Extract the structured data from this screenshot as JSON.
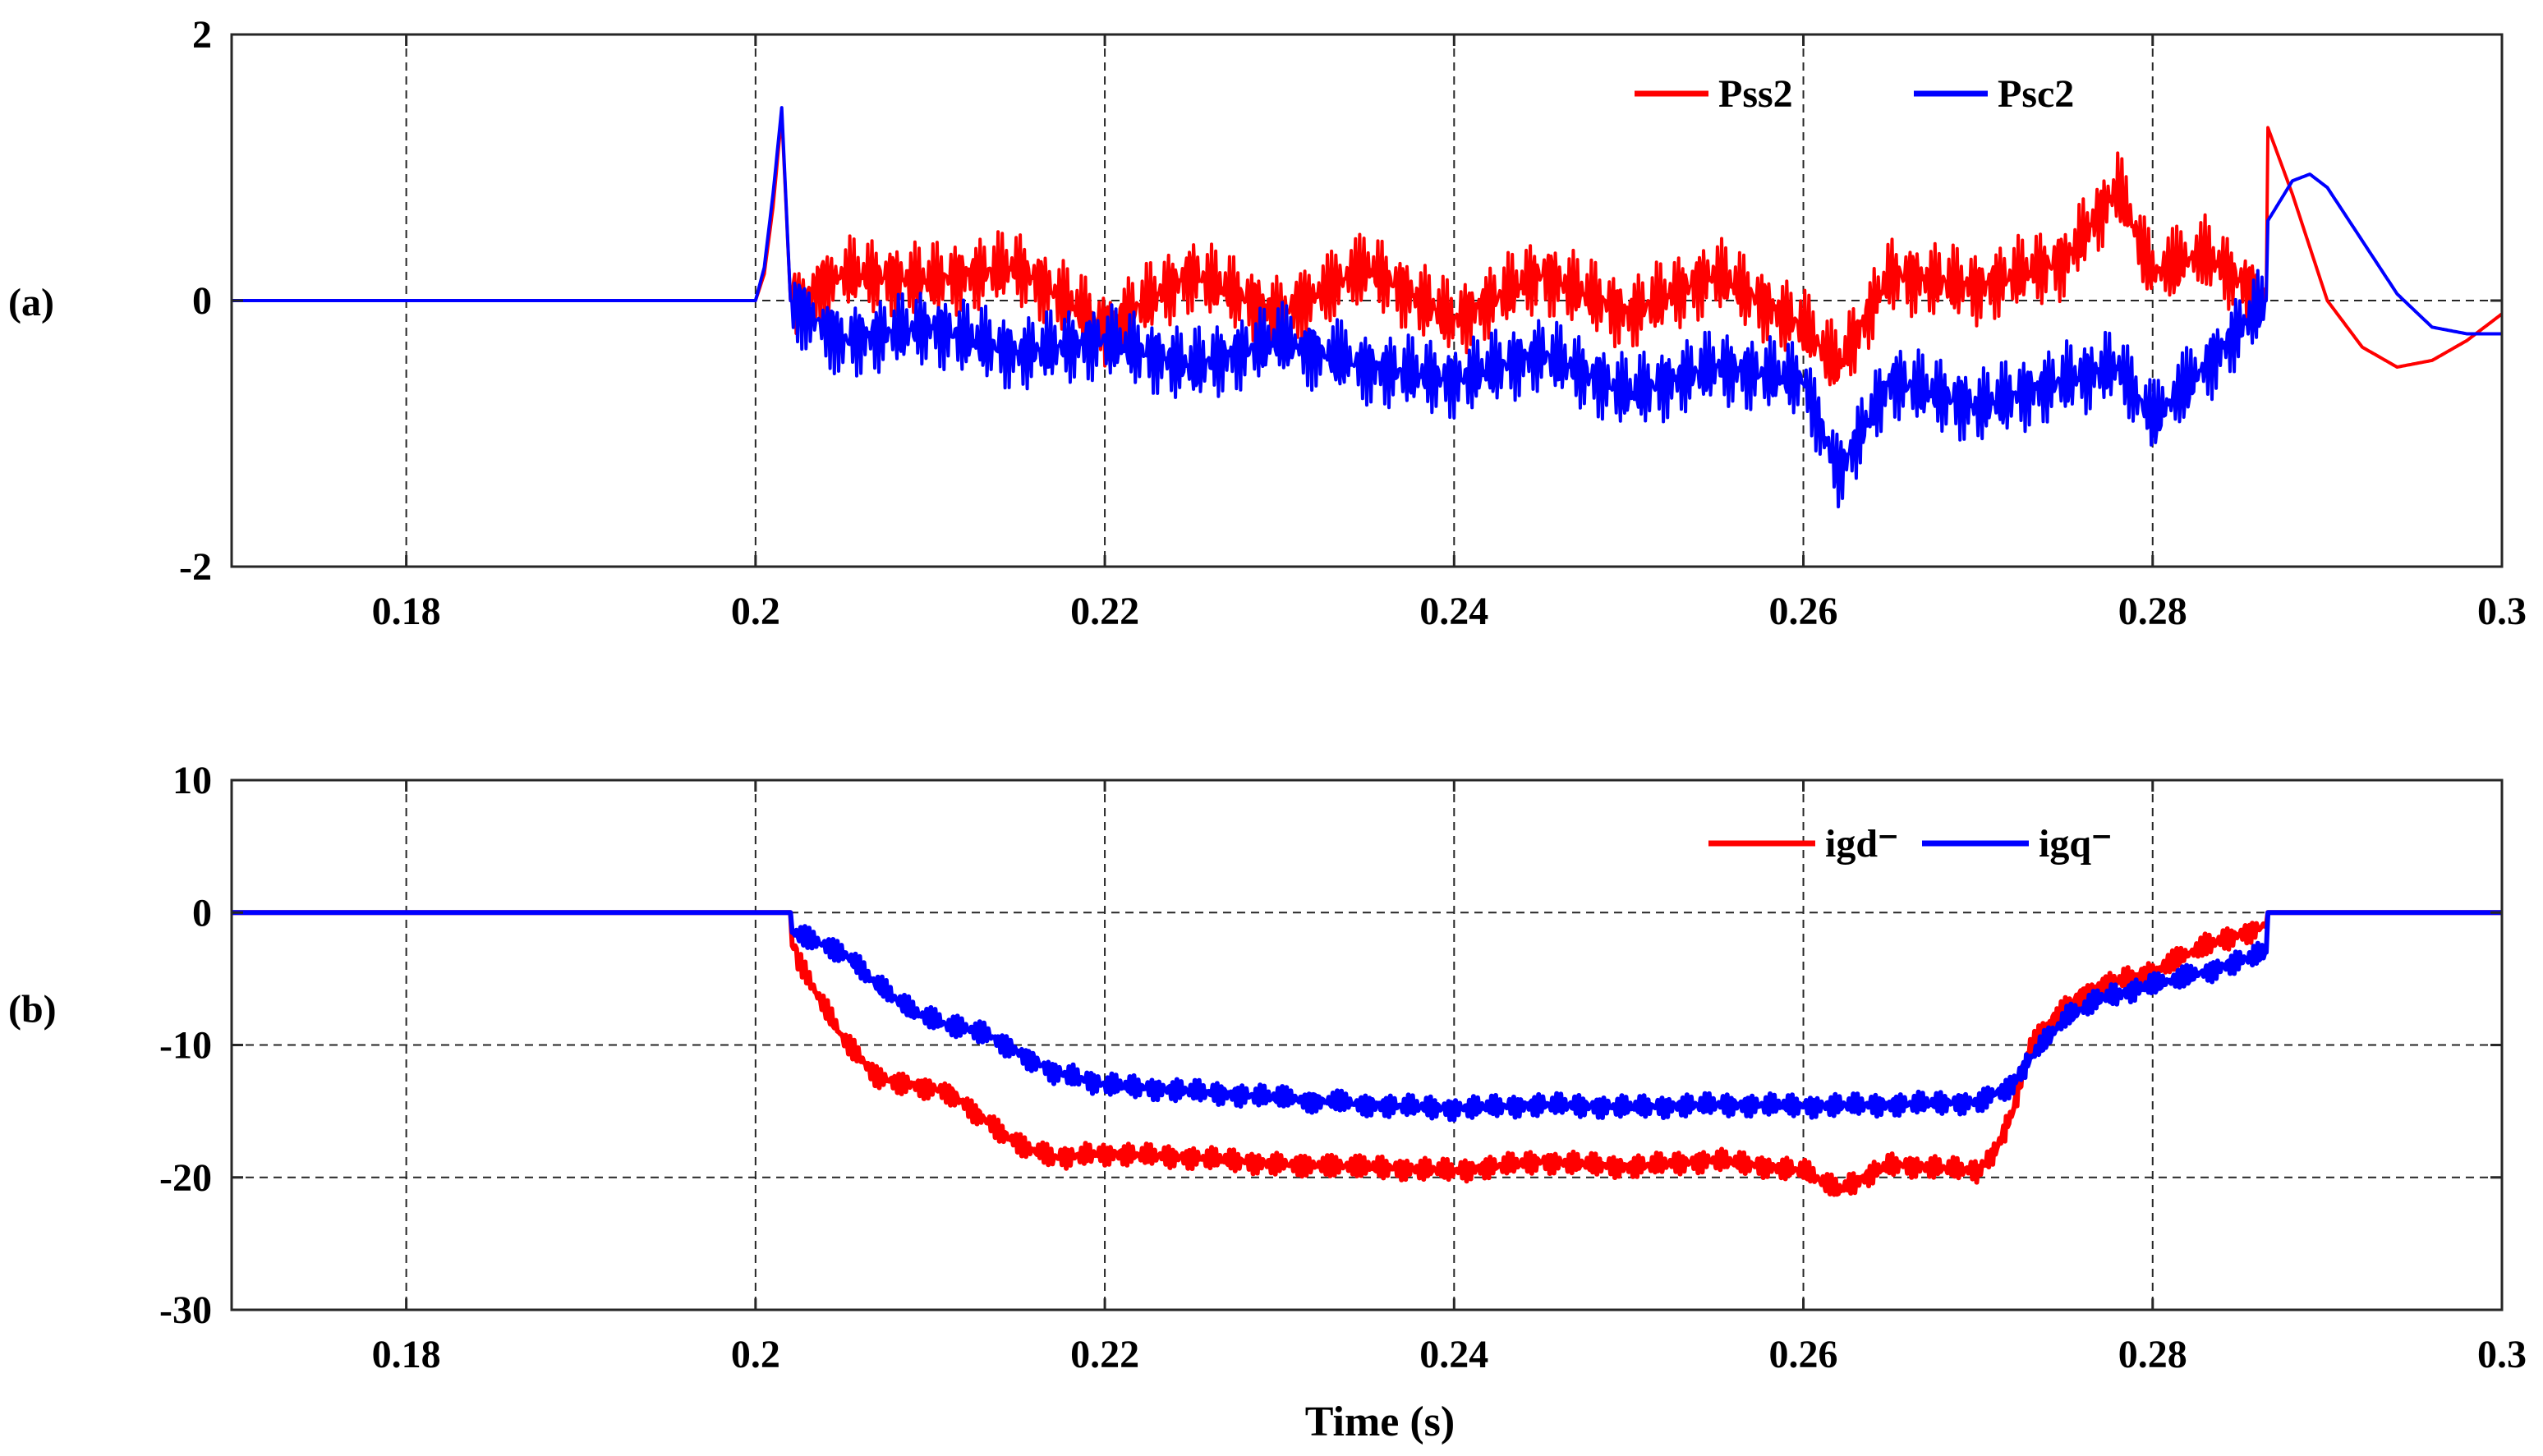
{
  "chart_data": [
    {
      "type": "line",
      "panel_label": "(a)",
      "title": "",
      "xlabel": "",
      "ylabel": "",
      "xlim": [
        0.17,
        0.3
      ],
      "ylim": [
        -2,
        2
      ],
      "x_ticks": [
        0.18,
        0.2,
        0.22,
        0.24,
        0.26,
        0.28,
        0.3
      ],
      "x_tick_labels": [
        "0.18",
        "0.2",
        "0.22",
        "0.24",
        "0.26",
        "0.28",
        "0.3"
      ],
      "y_ticks": [
        -2,
        0,
        2
      ],
      "y_tick_labels": [
        "-2",
        "0",
        "2"
      ],
      "grid": true,
      "legend_position": "top-right",
      "series": [
        {
          "name": "Pss2",
          "color": "#ff0000",
          "x": [
            0.17,
            0.2,
            0.2005,
            0.201,
            0.2015,
            0.202,
            0.202,
            0.205,
            0.21,
            0.215,
            0.22,
            0.225,
            0.23,
            0.235,
            0.24,
            0.245,
            0.25,
            0.255,
            0.26,
            0.262,
            0.265,
            0.27,
            0.275,
            0.278,
            0.28,
            0.283,
            0.2865,
            0.2866,
            0.288,
            0.29,
            0.292,
            0.294,
            0.296,
            0.298,
            0.3
          ],
          "y": [
            0.0,
            0.0,
            0.2,
            0.7,
            1.4,
            0.0,
            0.0,
            0.2,
            0.15,
            0.25,
            -0.2,
            0.2,
            -0.1,
            0.25,
            -0.15,
            0.2,
            -0.1,
            0.2,
            -0.2,
            -0.5,
            0.2,
            0.1,
            0.3,
            0.85,
            0.2,
            0.35,
            0.0,
            1.3,
            0.8,
            0.0,
            -0.35,
            -0.5,
            -0.45,
            -0.3,
            -0.1
          ]
        },
        {
          "name": "Psc2",
          "color": "#0000ff",
          "x": [
            0.17,
            0.2,
            0.2005,
            0.201,
            0.2015,
            0.202,
            0.202,
            0.205,
            0.21,
            0.215,
            0.22,
            0.225,
            0.23,
            0.235,
            0.24,
            0.245,
            0.25,
            0.255,
            0.26,
            0.262,
            0.265,
            0.27,
            0.275,
            0.278,
            0.28,
            0.283,
            0.2865,
            0.2866,
            0.288,
            0.289,
            0.29,
            0.292,
            0.294,
            0.296,
            0.298,
            0.3
          ],
          "y": [
            0.0,
            0.0,
            0.25,
            0.8,
            1.45,
            0.0,
            0.0,
            -0.3,
            -0.2,
            -0.4,
            -0.3,
            -0.5,
            -0.3,
            -0.5,
            -0.6,
            -0.4,
            -0.7,
            -0.5,
            -0.6,
            -1.3,
            -0.6,
            -0.8,
            -0.6,
            -0.5,
            -0.9,
            -0.5,
            0.0,
            0.6,
            0.9,
            0.95,
            0.85,
            0.45,
            0.05,
            -0.2,
            -0.25,
            -0.25
          ]
        }
      ]
    },
    {
      "type": "line",
      "panel_label": "(b)",
      "title": "",
      "xlabel": "Time (s)",
      "ylabel": "",
      "xlim": [
        0.17,
        0.3
      ],
      "ylim": [
        -30,
        10
      ],
      "x_ticks": [
        0.18,
        0.2,
        0.22,
        0.24,
        0.26,
        0.28,
        0.3
      ],
      "x_tick_labels": [
        "0.18",
        "0.2",
        "0.22",
        "0.24",
        "0.26",
        "0.28",
        "0.3"
      ],
      "y_ticks": [
        -30,
        -20,
        -10,
        0,
        10
      ],
      "y_tick_labels": [
        "-30",
        "-20",
        "-10",
        "0",
        "10"
      ],
      "grid": true,
      "legend_position": "top-right",
      "series": [
        {
          "name": "igd⁻",
          "color": "#ff0000",
          "x": [
            0.17,
            0.202,
            0.2021,
            0.203,
            0.205,
            0.207,
            0.209,
            0.211,
            0.213,
            0.215,
            0.217,
            0.22,
            0.225,
            0.23,
            0.235,
            0.24,
            0.245,
            0.25,
            0.255,
            0.26,
            0.262,
            0.265,
            0.27,
            0.271,
            0.272,
            0.273,
            0.275,
            0.277,
            0.28,
            0.283,
            0.2865,
            0.2866,
            0.3
          ],
          "y": [
            0.0,
            0.0,
            -2.5,
            -5.0,
            -9.5,
            -12.5,
            -13.0,
            -13.5,
            -15.5,
            -17.5,
            -18.5,
            -18.2,
            -18.5,
            -19.0,
            -19.2,
            -19.5,
            -18.8,
            -19.2,
            -18.7,
            -19.5,
            -21.0,
            -19.0,
            -19.5,
            -18.0,
            -15.0,
            -10.0,
            -7.0,
            -5.5,
            -4.5,
            -2.5,
            -1.0,
            0.0,
            0.0
          ]
        },
        {
          "name": "igq⁻",
          "color": "#0000ff",
          "x": [
            0.17,
            0.202,
            0.2021,
            0.205,
            0.207,
            0.209,
            0.211,
            0.213,
            0.215,
            0.217,
            0.22,
            0.225,
            0.23,
            0.235,
            0.24,
            0.245,
            0.25,
            0.255,
            0.26,
            0.265,
            0.27,
            0.272,
            0.273,
            0.275,
            0.277,
            0.28,
            0.283,
            0.2865,
            0.2866,
            0.3
          ],
          "y": [
            0.0,
            0.0,
            -1.5,
            -3.0,
            -5.5,
            -7.5,
            -8.5,
            -9.0,
            -10.5,
            -12.0,
            -13.0,
            -13.5,
            -14.0,
            -14.5,
            -14.8,
            -14.5,
            -14.7,
            -14.5,
            -14.6,
            -14.5,
            -14.3,
            -13.0,
            -11.0,
            -8.0,
            -6.5,
            -5.5,
            -4.5,
            -3.0,
            0.0,
            0.0
          ]
        }
      ]
    }
  ]
}
